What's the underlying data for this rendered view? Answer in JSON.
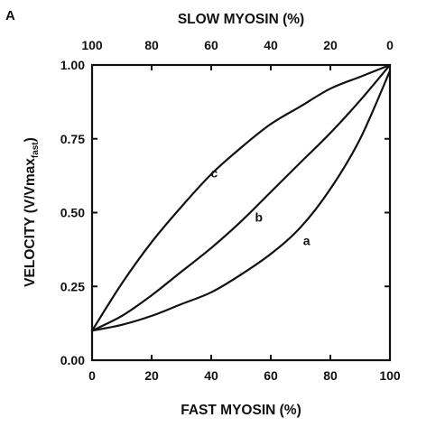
{
  "chart_data": {
    "type": "line",
    "panel_label": "A",
    "xlabel": "FAST MYOSIN (%)",
    "x2label": "SLOW MYOSIN (%)",
    "ylabel": "VELOCITY (V/Vmax",
    "ylabel_subscript": "fast",
    "ylabel_close": ")",
    "xlim": [
      0,
      100
    ],
    "ylim": [
      0,
      1
    ],
    "x_ticks": [
      "0",
      "20",
      "40",
      "60",
      "80",
      "100"
    ],
    "x2_ticks": [
      "100",
      "80",
      "60",
      "40",
      "20",
      "0"
    ],
    "y_ticks": [
      "0.00",
      "0.25",
      "0.50",
      "0.75",
      "1.00"
    ],
    "grid": false,
    "legend": "none",
    "series": [
      {
        "name": "a",
        "label_at": [
          72,
          0.39
        ],
        "x": [
          0,
          10,
          20,
          30,
          40,
          50,
          60,
          70,
          80,
          90,
          100
        ],
        "y": [
          0.1,
          0.12,
          0.15,
          0.19,
          0.23,
          0.29,
          0.36,
          0.45,
          0.58,
          0.75,
          0.98
        ]
      },
      {
        "name": "b",
        "label_at": [
          56,
          0.47
        ],
        "x": [
          0,
          10,
          20,
          30,
          40,
          50,
          60,
          70,
          80,
          90,
          100
        ],
        "y": [
          0.1,
          0.15,
          0.22,
          0.3,
          0.38,
          0.47,
          0.57,
          0.67,
          0.77,
          0.88,
          1.0
        ]
      },
      {
        "name": "c",
        "label_at": [
          41,
          0.62
        ],
        "x": [
          0,
          10,
          20,
          30,
          40,
          50,
          60,
          70,
          80,
          90,
          100
        ],
        "y": [
          0.1,
          0.26,
          0.4,
          0.52,
          0.63,
          0.72,
          0.8,
          0.86,
          0.92,
          0.96,
          1.0
        ]
      }
    ]
  }
}
